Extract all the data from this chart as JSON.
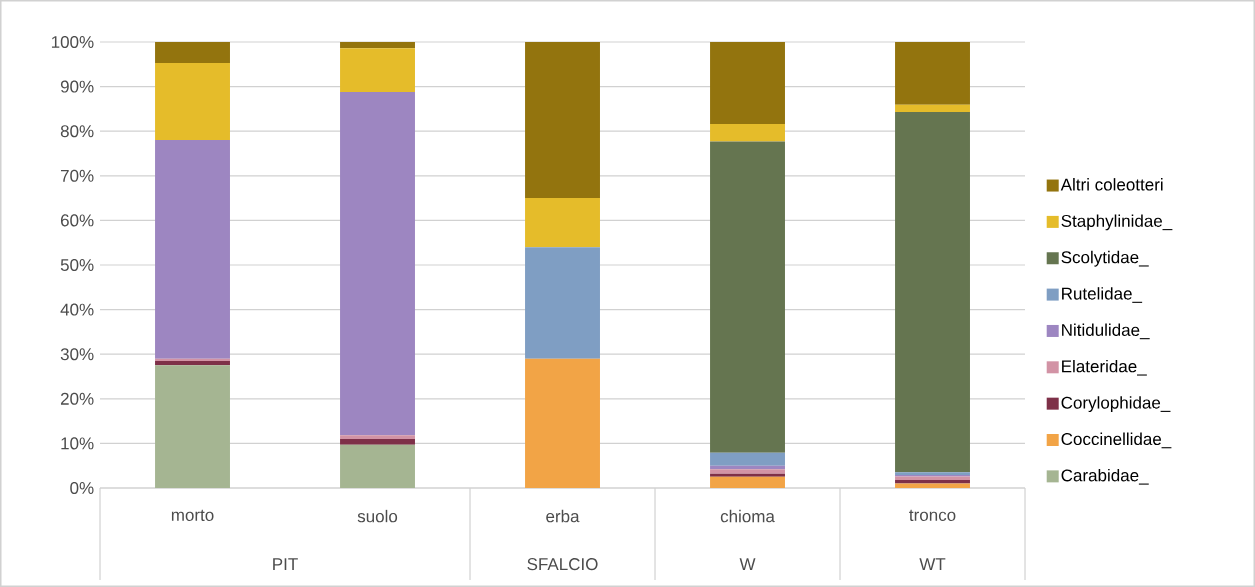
{
  "chart_data": {
    "type": "bar",
    "stacked": true,
    "categories": [
      "morto",
      "suolo",
      "erba",
      "chioma",
      "tronco"
    ],
    "annotations": [
      "PIT",
      "SFALCIO",
      "W",
      "WT"
    ],
    "series": [
      {
        "name": "Carabidae_",
        "color": "#a5b592",
        "values": [
          27.5,
          9.7,
          0,
          0,
          0
        ]
      },
      {
        "name": "Coccinellidae_",
        "color": "#f2a446",
        "values": [
          0,
          0,
          29,
          2.5,
          1.0
        ]
      },
      {
        "name": "Corylophidae_",
        "color": "#7e3048",
        "values": [
          1.0,
          1.3,
          0,
          0.7,
          0.8
        ]
      },
      {
        "name": "Elateridae_",
        "color": "#d293a5",
        "values": [
          0.5,
          0.8,
          0,
          1.0,
          0.8
        ]
      },
      {
        "name": "Nitidulidae_",
        "color": "#9d86c1",
        "values": [
          49,
          77,
          0,
          0.8,
          0.3
        ]
      },
      {
        "name": "Rutelidae_",
        "color": "#7f9ec3",
        "values": [
          0,
          0,
          25,
          2.9,
          0.6
        ]
      },
      {
        "name": "Scolytidae_",
        "color": "#657550",
        "values": [
          0,
          0,
          0,
          69.8,
          80.8
        ]
      },
      {
        "name": "Staphylinidae_",
        "color": "#e5bc2a",
        "values": [
          17.3,
          9.8,
          11,
          3.9,
          1.6
        ]
      },
      {
        "name": "Altri coleotteri",
        "color": "#93740e",
        "values": [
          4.7,
          1.4,
          35,
          18.4,
          14.1
        ]
      }
    ],
    "ylim": [
      0,
      100
    ],
    "yticks": [
      {
        "value": 0,
        "label": "0%"
      },
      {
        "value": 10,
        "label": "10%"
      },
      {
        "value": 20,
        "label": "20%"
      },
      {
        "value": 30,
        "label": "30%"
      },
      {
        "value": 40,
        "label": "40%"
      },
      {
        "value": 50,
        "label": "50%"
      },
      {
        "value": 60,
        "label": "60%"
      },
      {
        "value": 70,
        "label": "70%"
      },
      {
        "value": 80,
        "label": "80%"
      },
      {
        "value": 90,
        "label": "90%"
      },
      {
        "value": 100,
        "label": "100%"
      }
    ],
    "grid": "y",
    "legend": "right"
  }
}
